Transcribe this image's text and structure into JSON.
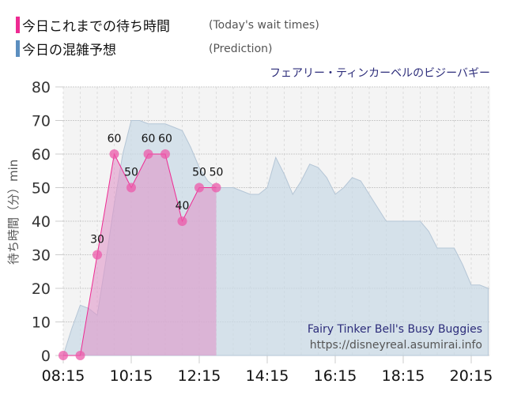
{
  "legend": {
    "today": {
      "label_jp": "今日これまでの待ち時間",
      "label_en": "(Today's wait times)",
      "color": "#ee2a92"
    },
    "prediction": {
      "label_jp": "今日の混雑予想",
      "label_en": "(Prediction)",
      "color": "#5b8ebf"
    }
  },
  "attraction_jp": "フェアリー・ティンカーベルのビジーバギー",
  "watermark": {
    "name_en": "Fairy Tinker Bell's Busy Buggies",
    "url": "https://disneyreal.asumirai.info"
  },
  "chart_data": {
    "type": "area",
    "title": "フェアリー・ティンカーベルのビジーバギー",
    "xlabel": "",
    "ylabel": "待ち時間（分）min",
    "ylim": [
      0,
      80
    ],
    "yticks": [
      0,
      10,
      20,
      30,
      40,
      50,
      60,
      70,
      80
    ],
    "xticks": [
      "08:15",
      "10:15",
      "12:15",
      "14:15",
      "16:15",
      "18:15",
      "20:15"
    ],
    "grid": true,
    "series": [
      {
        "name": "今日これまでの待ち時間 (Today's wait times)",
        "type": "line+area",
        "x": [
          "08:15",
          "08:45",
          "09:15",
          "09:45",
          "10:15",
          "10:45",
          "11:15",
          "11:45",
          "12:15",
          "12:45"
        ],
        "values": [
          0,
          0,
          30,
          60,
          50,
          60,
          60,
          40,
          50,
          50
        ]
      },
      {
        "name": "今日の混雑予想 (Prediction)",
        "type": "area",
        "x": [
          "08:15",
          "08:30",
          "08:45",
          "09:00",
          "09:15",
          "09:30",
          "09:45",
          "10:00",
          "10:15",
          "10:30",
          "10:45",
          "11:00",
          "11:15",
          "11:30",
          "11:45",
          "12:00",
          "12:15",
          "12:30",
          "12:45",
          "13:00",
          "13:15",
          "13:30",
          "13:45",
          "14:00",
          "14:15",
          "14:30",
          "14:45",
          "15:00",
          "15:15",
          "15:30",
          "15:45",
          "16:00",
          "16:15",
          "16:30",
          "16:45",
          "17:00",
          "17:15",
          "17:30",
          "17:45",
          "18:00",
          "18:15",
          "18:30",
          "18:45",
          "19:00",
          "19:15",
          "19:30",
          "19:45",
          "20:00",
          "20:15",
          "20:30",
          "20:45"
        ],
        "values": [
          0,
          8,
          15,
          14,
          12,
          28,
          45,
          60,
          70,
          70,
          69,
          69,
          69,
          68,
          67,
          62,
          56,
          52,
          50,
          50,
          50,
          49,
          48,
          48,
          50,
          59,
          54,
          48,
          52,
          57,
          56,
          53,
          48,
          50,
          53,
          52,
          48,
          44,
          40,
          40,
          40,
          40,
          40,
          37,
          32,
          32,
          32,
          27,
          21,
          21,
          20
        ]
      }
    ]
  }
}
